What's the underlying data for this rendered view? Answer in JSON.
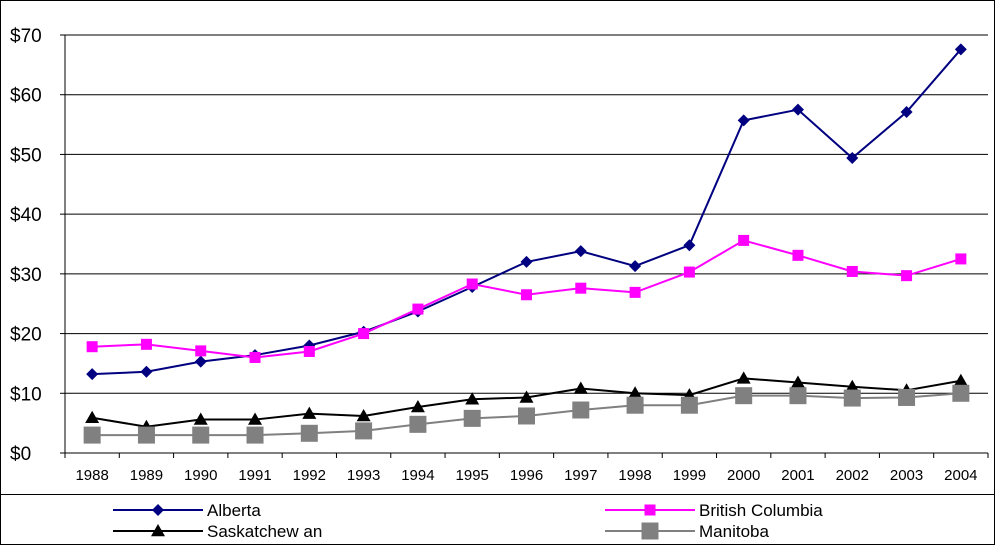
{
  "chart_data": {
    "type": "line",
    "title": "",
    "xlabel": "",
    "ylabel": "",
    "categories": [
      "1988",
      "1989",
      "1990",
      "1991",
      "1992",
      "1993",
      "1994",
      "1995",
      "1996",
      "1997",
      "1998",
      "1999",
      "2000",
      "2001",
      "2002",
      "2003",
      "2004"
    ],
    "ylim": [
      0,
      70
    ],
    "yticks": [
      {
        "value": 0,
        "label": "$0"
      },
      {
        "value": 10,
        "label": "$10"
      },
      {
        "value": 20,
        "label": "$20"
      },
      {
        "value": 30,
        "label": "$30"
      },
      {
        "value": 40,
        "label": "$40"
      },
      {
        "value": 50,
        "label": "$50"
      },
      {
        "value": 60,
        "label": "$60"
      },
      {
        "value": 70,
        "label": "$70"
      }
    ],
    "grid": true,
    "legend_position": "bottom",
    "series": [
      {
        "name": "Alberta",
        "color": "#000080",
        "marker": "diamond",
        "values": [
          13.2,
          13.6,
          15.3,
          16.4,
          18.0,
          20.3,
          23.7,
          27.8,
          32.0,
          33.8,
          31.3,
          34.8,
          55.7,
          57.5,
          49.4,
          57.1,
          67.6
        ]
      },
      {
        "name": "British Columbia",
        "color": "#FF00FF",
        "marker": "square",
        "values": [
          17.8,
          18.2,
          17.1,
          16.0,
          17.0,
          20.0,
          24.1,
          28.3,
          26.5,
          27.6,
          26.9,
          30.3,
          35.6,
          33.1,
          30.4,
          29.7,
          32.5
        ]
      },
      {
        "name": "Saskatchew an",
        "color": "#000000",
        "marker": "triangle",
        "values": [
          5.9,
          4.4,
          5.6,
          5.6,
          6.6,
          6.2,
          7.7,
          9.0,
          9.3,
          10.8,
          10.0,
          9.7,
          12.5,
          11.8,
          11.1,
          10.5,
          12.1
        ]
      },
      {
        "name": "Manitoba",
        "color": "#808080",
        "marker": "square-large",
        "values": [
          3.0,
          3.0,
          3.0,
          3.0,
          3.3,
          3.7,
          4.8,
          5.8,
          6.2,
          7.2,
          8.0,
          8.0,
          9.6,
          9.6,
          9.2,
          9.3,
          10.0
        ]
      }
    ]
  }
}
